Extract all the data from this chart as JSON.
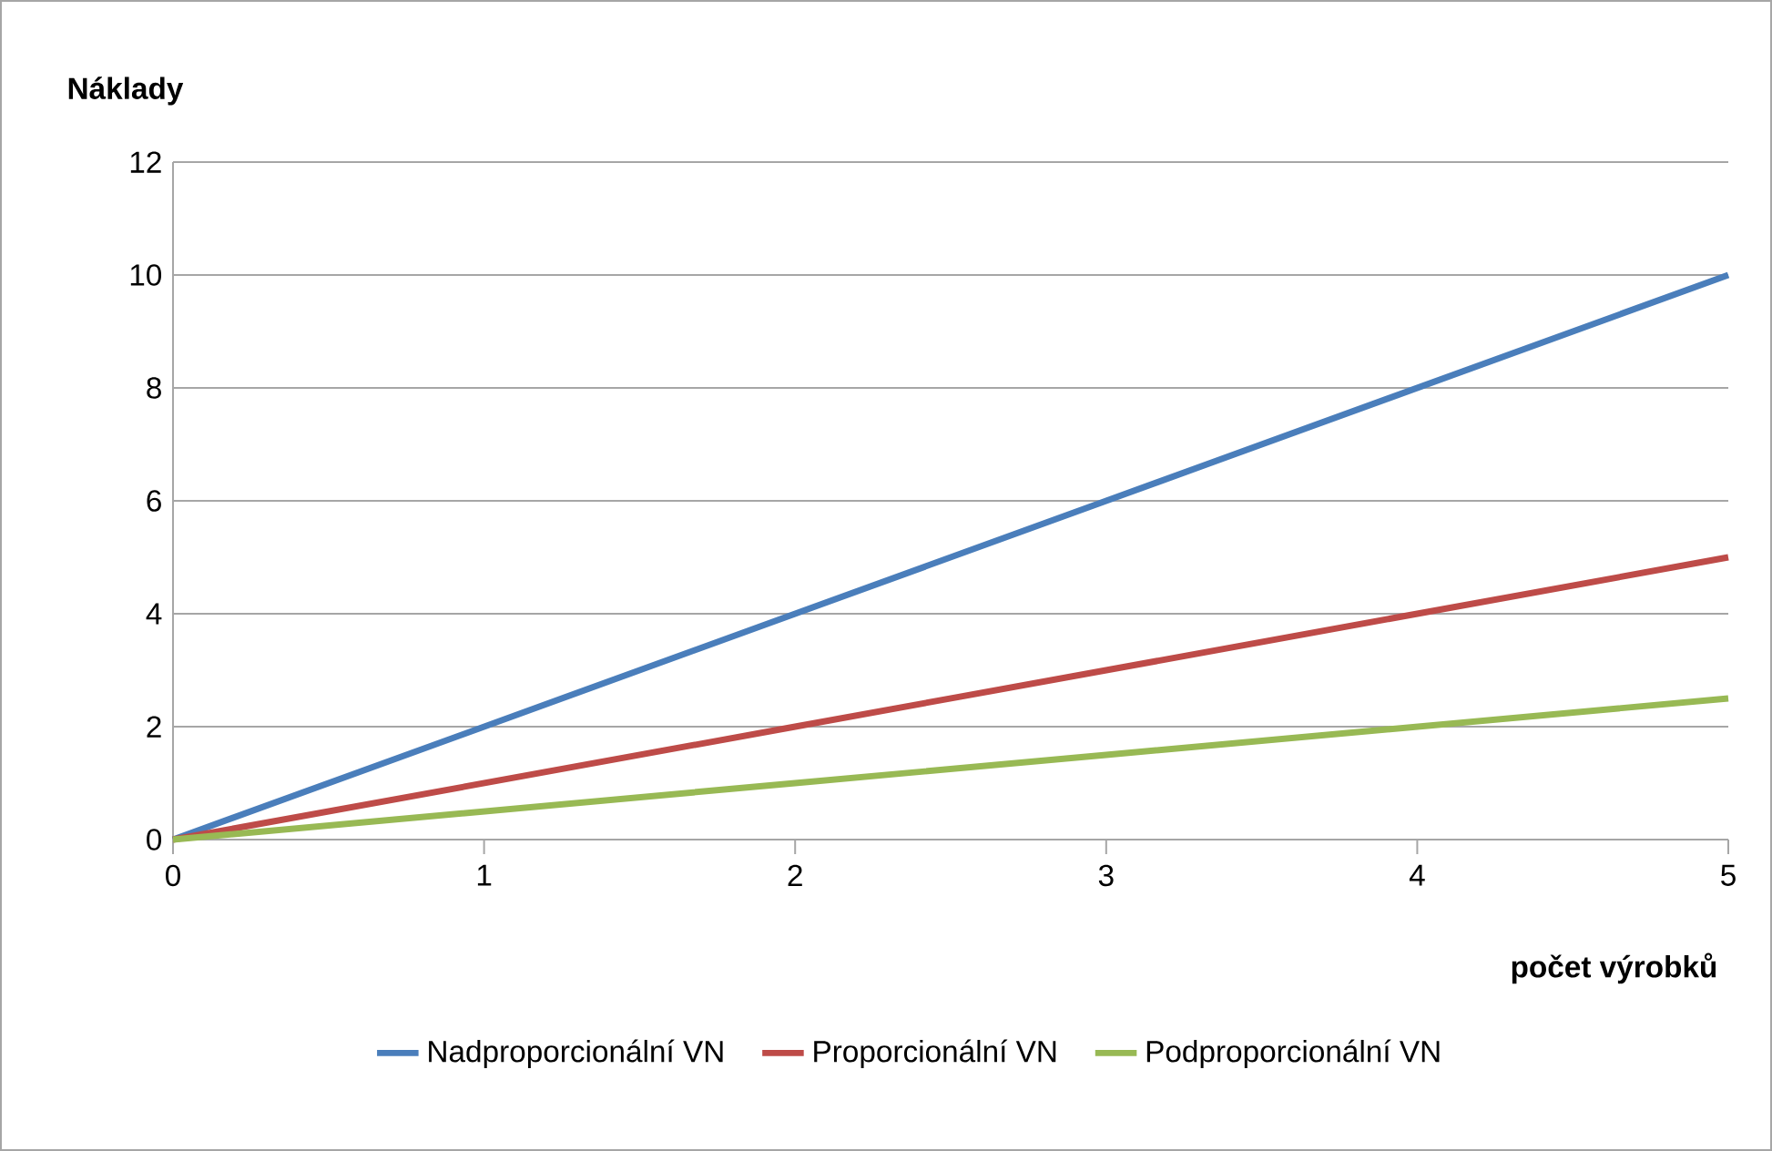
{
  "chart_data": {
    "type": "line",
    "xlabel": "počet výrobků",
    "ylabel": "Náklady",
    "x": [
      0,
      1,
      2,
      3,
      4,
      5
    ],
    "series": [
      {
        "name": "Nadproporcionální VN",
        "color": "#4a7ebb",
        "values": [
          0,
          2,
          4,
          6,
          8,
          10
        ]
      },
      {
        "name": "Proporcionální VN",
        "color": "#be4b48",
        "values": [
          0,
          1,
          2,
          3,
          4,
          5
        ]
      },
      {
        "name": "Podproporcionální VN",
        "color": "#98b954",
        "values": [
          0,
          0.5,
          1,
          1.5,
          2,
          2.5
        ]
      }
    ],
    "xlim": [
      0,
      5
    ],
    "ylim": [
      0,
      12
    ],
    "xticks": [
      0,
      1,
      2,
      3,
      4,
      5
    ],
    "yticks": [
      0,
      2,
      4,
      6,
      8,
      10,
      12
    ],
    "grid": "y",
    "legend": "bottom",
    "marker": "none",
    "line_style": "solid"
  }
}
